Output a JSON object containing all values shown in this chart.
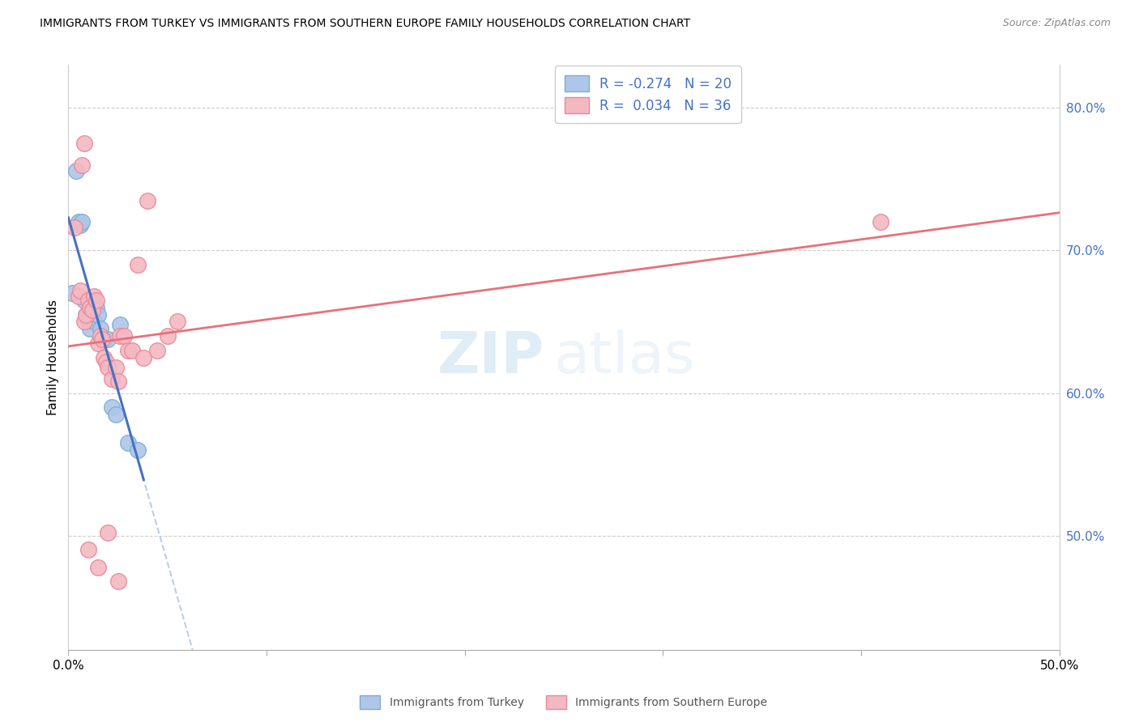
{
  "title": "IMMIGRANTS FROM TURKEY VS IMMIGRANTS FROM SOUTHERN EUROPE FAMILY HOUSEHOLDS CORRELATION CHART",
  "source": "Source: ZipAtlas.com",
  "ylabel": "Family Households",
  "ylabel_right_ticks": [
    "80.0%",
    "70.0%",
    "60.0%",
    "50.0%"
  ],
  "ylabel_right_vals": [
    0.8,
    0.7,
    0.6,
    0.5
  ],
  "watermark_zip": "ZIP",
  "watermark_atlas": "atlas",
  "turkey_color": "#aec6e8",
  "turkey_edge": "#7aafd4",
  "south_color": "#f4b8c1",
  "south_edge": "#e8889a",
  "turkey_line_color": "#4472c4",
  "south_line_color": "#e8707a",
  "dashed_line_color": "#aec6e8",
  "xlim": [
    0.0,
    0.5
  ],
  "ylim": [
    0.42,
    0.83
  ],
  "xticks": [
    0.0,
    0.1,
    0.2,
    0.3,
    0.4,
    0.5
  ],
  "xtick_labels_shown": {
    "0.0": "0.0%",
    "0.5": "50.0%"
  },
  "turkey_x": [
    0.002,
    0.004,
    0.005,
    0.006,
    0.007,
    0.008,
    0.009,
    0.01,
    0.011,
    0.013,
    0.014,
    0.015,
    0.016,
    0.018,
    0.02,
    0.022,
    0.024,
    0.026,
    0.03,
    0.035
  ],
  "turkey_y": [
    0.67,
    0.756,
    0.72,
    0.718,
    0.72,
    0.665,
    0.655,
    0.65,
    0.645,
    0.65,
    0.66,
    0.655,
    0.645,
    0.638,
    0.638,
    0.59,
    0.585,
    0.648,
    0.565,
    0.56
  ],
  "south_x": [
    0.003,
    0.005,
    0.006,
    0.007,
    0.008,
    0.009,
    0.01,
    0.011,
    0.012,
    0.013,
    0.014,
    0.015,
    0.016,
    0.017,
    0.018,
    0.019,
    0.02,
    0.022,
    0.024,
    0.025,
    0.026,
    0.028,
    0.03,
    0.032,
    0.035,
    0.038,
    0.04,
    0.045,
    0.05,
    0.055,
    0.01,
    0.015,
    0.02,
    0.025,
    0.41,
    0.008
  ],
  "south_y": [
    0.716,
    0.668,
    0.672,
    0.76,
    0.65,
    0.655,
    0.665,
    0.66,
    0.658,
    0.668,
    0.665,
    0.635,
    0.64,
    0.638,
    0.625,
    0.622,
    0.618,
    0.61,
    0.618,
    0.608,
    0.64,
    0.64,
    0.63,
    0.63,
    0.69,
    0.625,
    0.735,
    0.63,
    0.64,
    0.65,
    0.49,
    0.478,
    0.502,
    0.468,
    0.72,
    0.775
  ],
  "legend_label1": "R = -0.274   N = 20",
  "legend_label2": "R =  0.034   N = 36",
  "bottom_label1": "Immigrants from Turkey",
  "bottom_label2": "Immigrants from Southern Europe"
}
